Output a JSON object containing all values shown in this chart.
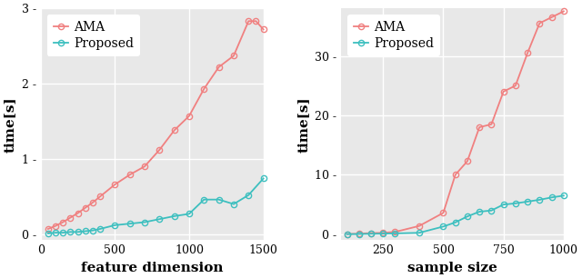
{
  "plot1": {
    "xlabel": "feature dimension",
    "ylabel": "time[s]",
    "xlim": [
      0,
      1500
    ],
    "ylim": [
      -0.08,
      3.0
    ],
    "yticks": [
      0,
      1,
      2,
      3
    ],
    "xticks": [
      0,
      500,
      1000,
      1500
    ],
    "ama_x": [
      50,
      100,
      150,
      200,
      250,
      300,
      350,
      400,
      500,
      600,
      700,
      800,
      900,
      1000,
      1100,
      1200,
      1300,
      1400,
      1450,
      1500
    ],
    "ama_y": [
      0.07,
      0.11,
      0.16,
      0.22,
      0.28,
      0.35,
      0.42,
      0.5,
      0.66,
      0.79,
      0.9,
      1.12,
      1.38,
      1.57,
      1.93,
      2.22,
      2.37,
      2.83,
      2.83,
      2.72
    ],
    "proposed_x": [
      50,
      100,
      150,
      200,
      250,
      300,
      350,
      400,
      500,
      600,
      700,
      800,
      900,
      1000,
      1100,
      1200,
      1300,
      1400,
      1500
    ],
    "proposed_y": [
      0.01,
      0.02,
      0.02,
      0.03,
      0.03,
      0.04,
      0.05,
      0.07,
      0.12,
      0.14,
      0.16,
      0.2,
      0.24,
      0.27,
      0.46,
      0.46,
      0.4,
      0.52,
      0.74
    ]
  },
  "plot2": {
    "xlabel": "sample size",
    "ylabel": "time[s]",
    "xlim": [
      75,
      1000
    ],
    "ylim": [
      -1.0,
      38
    ],
    "yticks": [
      0,
      10,
      20,
      30
    ],
    "xticks": [
      250,
      500,
      750,
      1000
    ],
    "ama_x": [
      100,
      150,
      200,
      250,
      300,
      400,
      500,
      550,
      600,
      650,
      700,
      750,
      800,
      850,
      900,
      950,
      1000
    ],
    "ama_y": [
      0.05,
      0.1,
      0.2,
      0.25,
      0.4,
      1.4,
      3.6,
      10.0,
      12.3,
      18.0,
      18.5,
      24.0,
      25.0,
      30.5,
      35.5,
      36.5,
      37.5
    ],
    "proposed_x": [
      100,
      150,
      200,
      250,
      300,
      400,
      500,
      550,
      600,
      650,
      700,
      750,
      800,
      850,
      900,
      950,
      1000
    ],
    "proposed_y": [
      0.02,
      0.04,
      0.08,
      0.1,
      0.15,
      0.25,
      1.3,
      2.0,
      3.0,
      3.8,
      4.0,
      5.0,
      5.2,
      5.5,
      5.8,
      6.2,
      6.5
    ]
  },
  "ama_color": "#F08080",
  "proposed_color": "#3DBFBF",
  "bg_color": "#E8E8E8",
  "grid_color": "#FFFFFF",
  "outer_bg": "#FFFFFF",
  "marker": "o",
  "markersize": 4.5,
  "linewidth": 1.3,
  "legend_fontsize": 10,
  "label_fontsize": 11,
  "tick_fontsize": 9
}
